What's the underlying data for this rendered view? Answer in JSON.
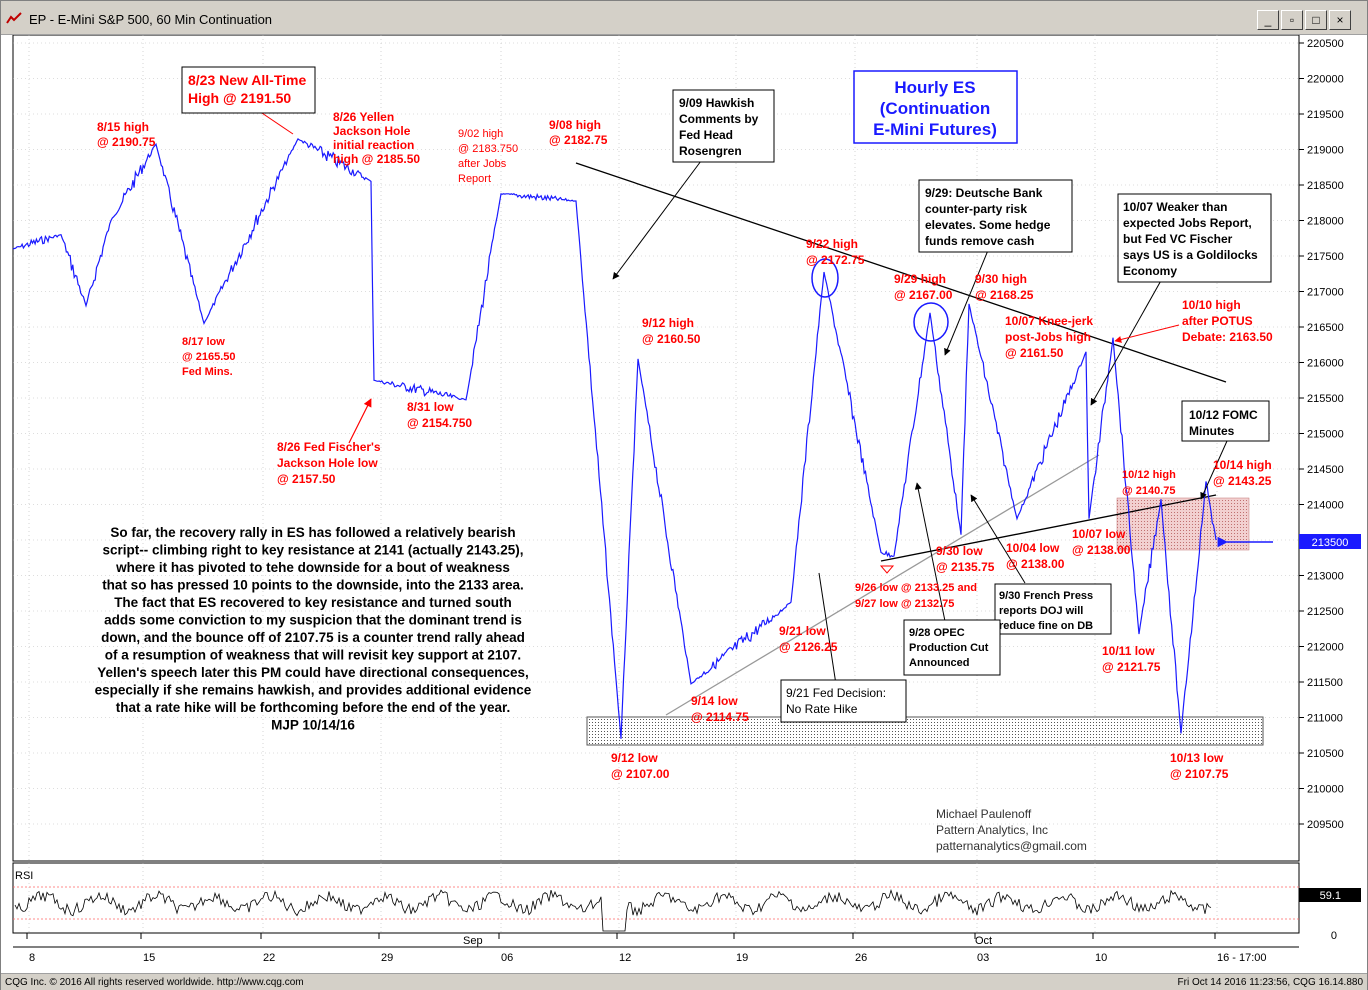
{
  "window": {
    "title": "EP - E-Mini S&P 500, 60 Min Continuation",
    "buttons": [
      "_",
      "▫",
      "□",
      "×"
    ]
  },
  "status": {
    "left": "CQG Inc. © 2016 All rights reserved worldwide. http://www.cqg.com",
    "right": "Fri Oct 14 2016 11:23:56, CQG 16.14.880"
  },
  "colors": {
    "price_line": "#1a1aff",
    "annotation": "#ff0000",
    "text": "#000000",
    "box_border": "#000000"
  },
  "chart_data": {
    "type": "line",
    "title": "EP - E-Mini S&P 500, 60 Min Continuation",
    "y_axis_ticks": [
      "220500",
      "220000",
      "219500",
      "219000",
      "218500",
      "218000",
      "217500",
      "217000",
      "216500",
      "216000",
      "215500",
      "215000",
      "214500",
      "214000",
      "213500",
      "213000",
      "212500",
      "212000",
      "211500",
      "211000",
      "210500",
      "210000",
      "209500"
    ],
    "ylim": [
      2092,
      2208
    ],
    "current_price_label": "213500",
    "x_date_ticks": [
      "8",
      "15",
      "22",
      "29",
      "06",
      "12",
      "19",
      "26",
      "03",
      "10",
      "16 - 17:00"
    ],
    "month_labels": [
      "Sep",
      "Oct"
    ],
    "series": [
      {
        "values_key_points": [
          {
            "date": "8/15",
            "value": 2190.75
          },
          {
            "date": "8/17",
            "value": 2165.5
          },
          {
            "date": "8/23",
            "value": 2191.5
          },
          {
            "date": "8/26",
            "value": 2185.5
          },
          {
            "date": "8/26",
            "value": 2157.5
          },
          {
            "date": "8/31",
            "value": 2154.75
          },
          {
            "date": "9/02",
            "value": 2183.75
          },
          {
            "date": "9/08",
            "value": 2182.75
          },
          {
            "date": "9/12",
            "value": 2107.0
          },
          {
            "date": "9/12",
            "value": 2160.5
          },
          {
            "date": "9/14",
            "value": 2114.75
          },
          {
            "date": "9/21",
            "value": 2126.25
          },
          {
            "date": "9/22",
            "value": 2172.75
          },
          {
            "date": "9/26",
            "value": 2133.25
          },
          {
            "date": "9/27",
            "value": 2132.75
          },
          {
            "date": "9/29",
            "value": 2167.0
          },
          {
            "date": "9/30",
            "value": 2135.75
          },
          {
            "date": "9/30",
            "value": 2168.25
          },
          {
            "date": "10/04",
            "value": 2138.0
          },
          {
            "date": "10/07",
            "value": 2161.5
          },
          {
            "date": "10/07",
            "value": 2138.0
          },
          {
            "date": "10/10",
            "value": 2163.5
          },
          {
            "date": "10/11",
            "value": 2121.75
          },
          {
            "date": "10/12",
            "value": 2140.75
          },
          {
            "date": "10/13",
            "value": 2107.75
          },
          {
            "date": "10/14",
            "value": 2143.25
          },
          {
            "date": "10/14",
            "value": 2135.0
          }
        ]
      }
    ],
    "rsi_label": "RSI",
    "rsi_ticks": [
      "59.1",
      "0"
    ]
  },
  "annotations": {
    "a823": [
      "8/23 New All-Time",
      "High @ 2191.50"
    ],
    "a815": [
      "8/15 high",
      "@ 2190.75"
    ],
    "a826y": [
      "8/26 Yellen",
      "Jackson Hole",
      "initial reaction",
      "high @ 2185.50"
    ],
    "a902": [
      "9/02 high",
      "@ 2183.750",
      "after Jobs",
      "Report"
    ],
    "a908": [
      "9/08 high",
      "@ 2182.75"
    ],
    "a909": [
      "9/09 Hawkish",
      "Comments by",
      "Fed Head",
      "Rosengren"
    ],
    "hourly": [
      "Hourly ES",
      "(Continuation",
      "E-Mini Futures)"
    ],
    "a929db": [
      "9/29: Deutsche Bank",
      "counter-party risk",
      "elevates. Some hedge",
      "funds remove cash"
    ],
    "a1007w": [
      "10/07 Weaker than",
      "expected Jobs Report,",
      "but Fed VC Fischer",
      "says US is a Goldilocks",
      "Economy"
    ],
    "a817": [
      "8/17 low",
      "@ 2165.50",
      "Fed Mins."
    ],
    "a826f": [
      "8/26 Fed Fischer's",
      "Jackson Hole low",
      "@ 2157.50"
    ],
    "a831": [
      "8/31 low",
      "@ 2154.750"
    ],
    "a912h": [
      "9/12 high",
      "@ 2160.50"
    ],
    "a922": [
      "9/22 high",
      "@ 2172.75"
    ],
    "a929h": [
      "9/29 high",
      "@ 2167.00"
    ],
    "a930h": [
      "9/30 high",
      "@ 2168.25"
    ],
    "a1007k": [
      "10/07 Knee-jerk",
      "post-Jobs high",
      "@ 2161.50"
    ],
    "a1010": [
      "10/10 high",
      "after POTUS",
      "Debate: 2163.50"
    ],
    "a1012fomc": [
      "10/12 FOMC",
      "Minutes"
    ],
    "a1012h": [
      "10/12 high",
      "@ 2140.75"
    ],
    "a1014h": [
      "10/14 high",
      "@ 2143.25"
    ],
    "a1007l": [
      "10/07 low",
      "@ 2138.00"
    ],
    "a930l": [
      "9/30 low",
      "@ 2135.75"
    ],
    "a1004l": [
      "10/04 low",
      "@ 2138.00"
    ],
    "a926": [
      "9/26 low @ 2133.25 and",
      "9/27 low @ 2132.75"
    ],
    "a930fp": [
      "9/30 French Press",
      "reports DOJ will",
      "reduce fine on DB"
    ],
    "a928": [
      "9/28 OPEC",
      "Production Cut",
      "Announced"
    ],
    "a921l": [
      "9/21 low",
      "@ 2126.25"
    ],
    "a921fed": [
      "9/21 Fed Decision:",
      "No Rate Hike"
    ],
    "a914": [
      "9/14 low",
      "@ 2114.75"
    ],
    "a912l": [
      "9/12 low",
      "@ 2107.00"
    ],
    "a1011": [
      "10/11 low",
      "@ 2121.75"
    ],
    "a1013": [
      "10/13 low",
      "@ 2107.75"
    ],
    "commentary": [
      "So far, the recovery rally in ES has followed a relatively bearish",
      "script-- climbing right to key resistance at 2141 (actually 2143.25),",
      "where it has pivoted to tehe downside for a bout of weakness",
      "that so has pressed 10 points to the downside, into the 2133 area.",
      "The fact that ES recovered to key resistance and turned south",
      "adds some conviction to my suspicion that the dominant trend is",
      "down, and the bounce off of 2107.75 is a counter trend rally ahead",
      "of a resumption of weakness that will revisit key support at 2107.",
      "Yellen's speech later this PM could have directional consequences,",
      "especially if she remains hawkish, and provides additional evidence",
      "that a rate hike will be forthcoming before the end of the year.",
      "MJP 10/14/16"
    ],
    "author": [
      "Michael Paulenoff",
      "Pattern Analytics, Inc",
      "patternanalytics@gmail.com"
    ]
  }
}
